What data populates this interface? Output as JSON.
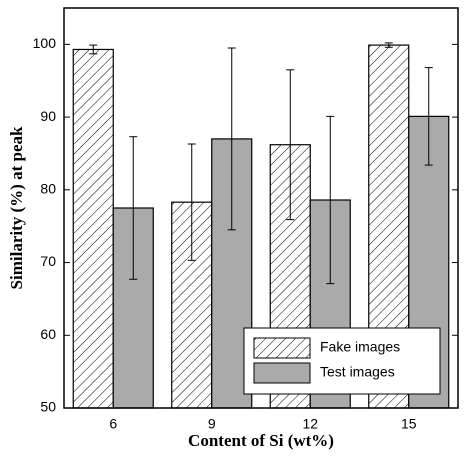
{
  "chart_data": {
    "type": "bar",
    "x_label": "Content of Si (wt%)",
    "y_label": "Similarity (%) at peak",
    "categories": [
      "6",
      "9",
      "12",
      "15"
    ],
    "series": [
      {
        "name": "Fake images",
        "color": "#ffffff",
        "hatch": true,
        "values": [
          99.3,
          78.3,
          86.2,
          99.9
        ],
        "errors": [
          0.6,
          8.0,
          10.3,
          0.3
        ]
      },
      {
        "name": "Test images",
        "color": "#aaaaaa",
        "hatch": false,
        "values": [
          77.5,
          87.0,
          78.6,
          90.1
        ],
        "errors": [
          9.8,
          12.5,
          11.5,
          6.7
        ]
      }
    ],
    "ylim": [
      50,
      105
    ],
    "yticks": [
      50,
      60,
      70,
      80,
      90,
      100
    ],
    "legend": "lower right"
  }
}
